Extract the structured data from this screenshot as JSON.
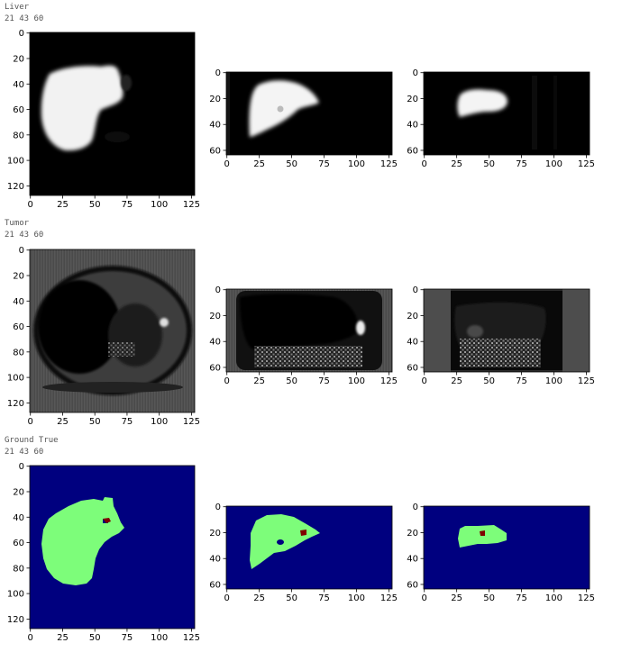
{
  "sections": [
    {
      "title": "Liver",
      "indices": "21 43 60"
    },
    {
      "title": "Tumor",
      "indices": "21 43 60"
    },
    {
      "title": "Ground True",
      "indices": "21 43 60"
    }
  ],
  "chart_data": [
    {
      "type": "heatmap",
      "title": "Liver",
      "cmap": "gray",
      "panels": [
        {
          "view": "axial",
          "xlim": [
            0,
            127
          ],
          "ylim": [
            127,
            0
          ],
          "xticks": [
            0,
            25,
            50,
            75,
            100,
            125
          ],
          "yticks": [
            0,
            20,
            40,
            60,
            80,
            100,
            120
          ]
        },
        {
          "view": "coronal",
          "xlim": [
            0,
            127
          ],
          "ylim": [
            63,
            0
          ],
          "xticks": [
            0,
            25,
            50,
            75,
            100,
            125
          ],
          "yticks": [
            0,
            20,
            40,
            60
          ]
        },
        {
          "view": "sagittal",
          "xlim": [
            0,
            127
          ],
          "ylim": [
            63,
            0
          ],
          "xticks": [
            0,
            25,
            50,
            75,
            100,
            125
          ],
          "yticks": [
            0,
            20,
            40,
            60
          ]
        }
      ]
    },
    {
      "type": "heatmap",
      "title": "Tumor",
      "cmap": "gray",
      "panels": [
        {
          "view": "axial",
          "xlim": [
            0,
            127
          ],
          "ylim": [
            127,
            0
          ],
          "xticks": [
            0,
            25,
            50,
            75,
            100,
            125
          ],
          "yticks": [
            0,
            20,
            40,
            60,
            80,
            100,
            120
          ]
        },
        {
          "view": "coronal",
          "xlim": [
            0,
            127
          ],
          "ylim": [
            63,
            0
          ],
          "xticks": [
            0,
            25,
            50,
            75,
            100,
            125
          ],
          "yticks": [
            0,
            20,
            40,
            60
          ]
        },
        {
          "view": "sagittal",
          "xlim": [
            0,
            127
          ],
          "ylim": [
            63,
            0
          ],
          "xticks": [
            0,
            25,
            50,
            75,
            100,
            125
          ],
          "yticks": [
            0,
            20,
            40,
            60
          ]
        }
      ]
    },
    {
      "type": "heatmap",
      "title": "Ground True",
      "cmap": "jet",
      "colors": {
        "background": "#00007f",
        "liver": "#7dfd7a",
        "tumor": "#7f0000"
      },
      "panels": [
        {
          "view": "axial",
          "xlim": [
            0,
            127
          ],
          "ylim": [
            127,
            0
          ],
          "xticks": [
            0,
            25,
            50,
            75,
            100,
            125
          ],
          "yticks": [
            0,
            20,
            40,
            60,
            80,
            100,
            120
          ]
        },
        {
          "view": "coronal",
          "xlim": [
            0,
            127
          ],
          "ylim": [
            63,
            0
          ],
          "xticks": [
            0,
            25,
            50,
            75,
            100,
            125
          ],
          "yticks": [
            0,
            20,
            40,
            60
          ]
        },
        {
          "view": "sagittal",
          "xlim": [
            0,
            127
          ],
          "ylim": [
            63,
            0
          ],
          "xticks": [
            0,
            25,
            50,
            75,
            100,
            125
          ],
          "yticks": [
            0,
            20,
            40,
            60
          ]
        }
      ]
    }
  ]
}
